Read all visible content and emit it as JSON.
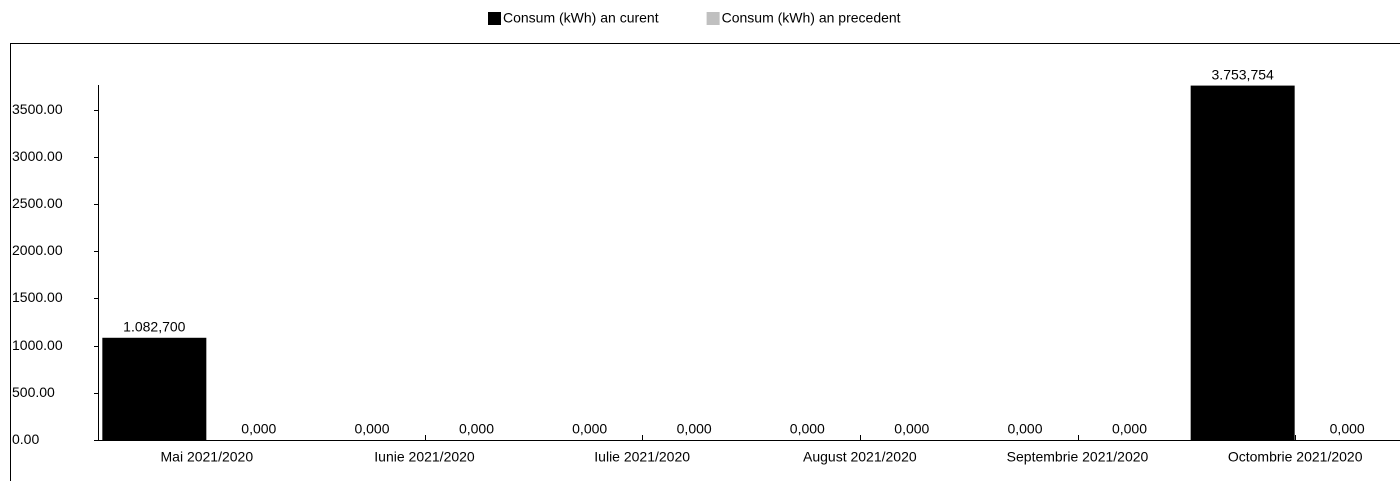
{
  "chart_data": {
    "type": "bar",
    "categories": [
      "Mai 2021/2020",
      "Iunie 2021/2020",
      "Iulie 2021/2020",
      "August 2021/2020",
      "Septembrie 2021/2020",
      "Octombrie 2021/2020"
    ],
    "series": [
      {
        "name": "Consum (kWh) an curent",
        "color": "#000000",
        "values": [
          1082.7,
          0,
          0,
          0,
          0,
          3753.754
        ],
        "value_labels": [
          "1.082,700",
          "0,000",
          "0,000",
          "0,000",
          "0,000",
          "3.753,754"
        ]
      },
      {
        "name": "Consum (kWh) an precedent",
        "color": "#c0c0c0",
        "values": [
          0,
          0,
          0,
          0,
          0,
          0
        ],
        "value_labels": [
          "0,000",
          "0,000",
          "0,000",
          "0,000",
          "0,000",
          "0,000"
        ]
      }
    ],
    "ylim": [
      0,
      3760
    ],
    "yticks": [
      {
        "value": 0,
        "label": "0.00"
      },
      {
        "value": 500,
        "label": "500.00"
      },
      {
        "value": 1000,
        "label": "1000.00"
      },
      {
        "value": 1500,
        "label": "1500.00"
      },
      {
        "value": 2000,
        "label": "2000.00"
      },
      {
        "value": 2500,
        "label": "2500.00"
      },
      {
        "value": 3000,
        "label": "3000.00"
      },
      {
        "value": 3500,
        "label": "3500.00"
      }
    ],
    "legend": "top",
    "grid": false
  }
}
